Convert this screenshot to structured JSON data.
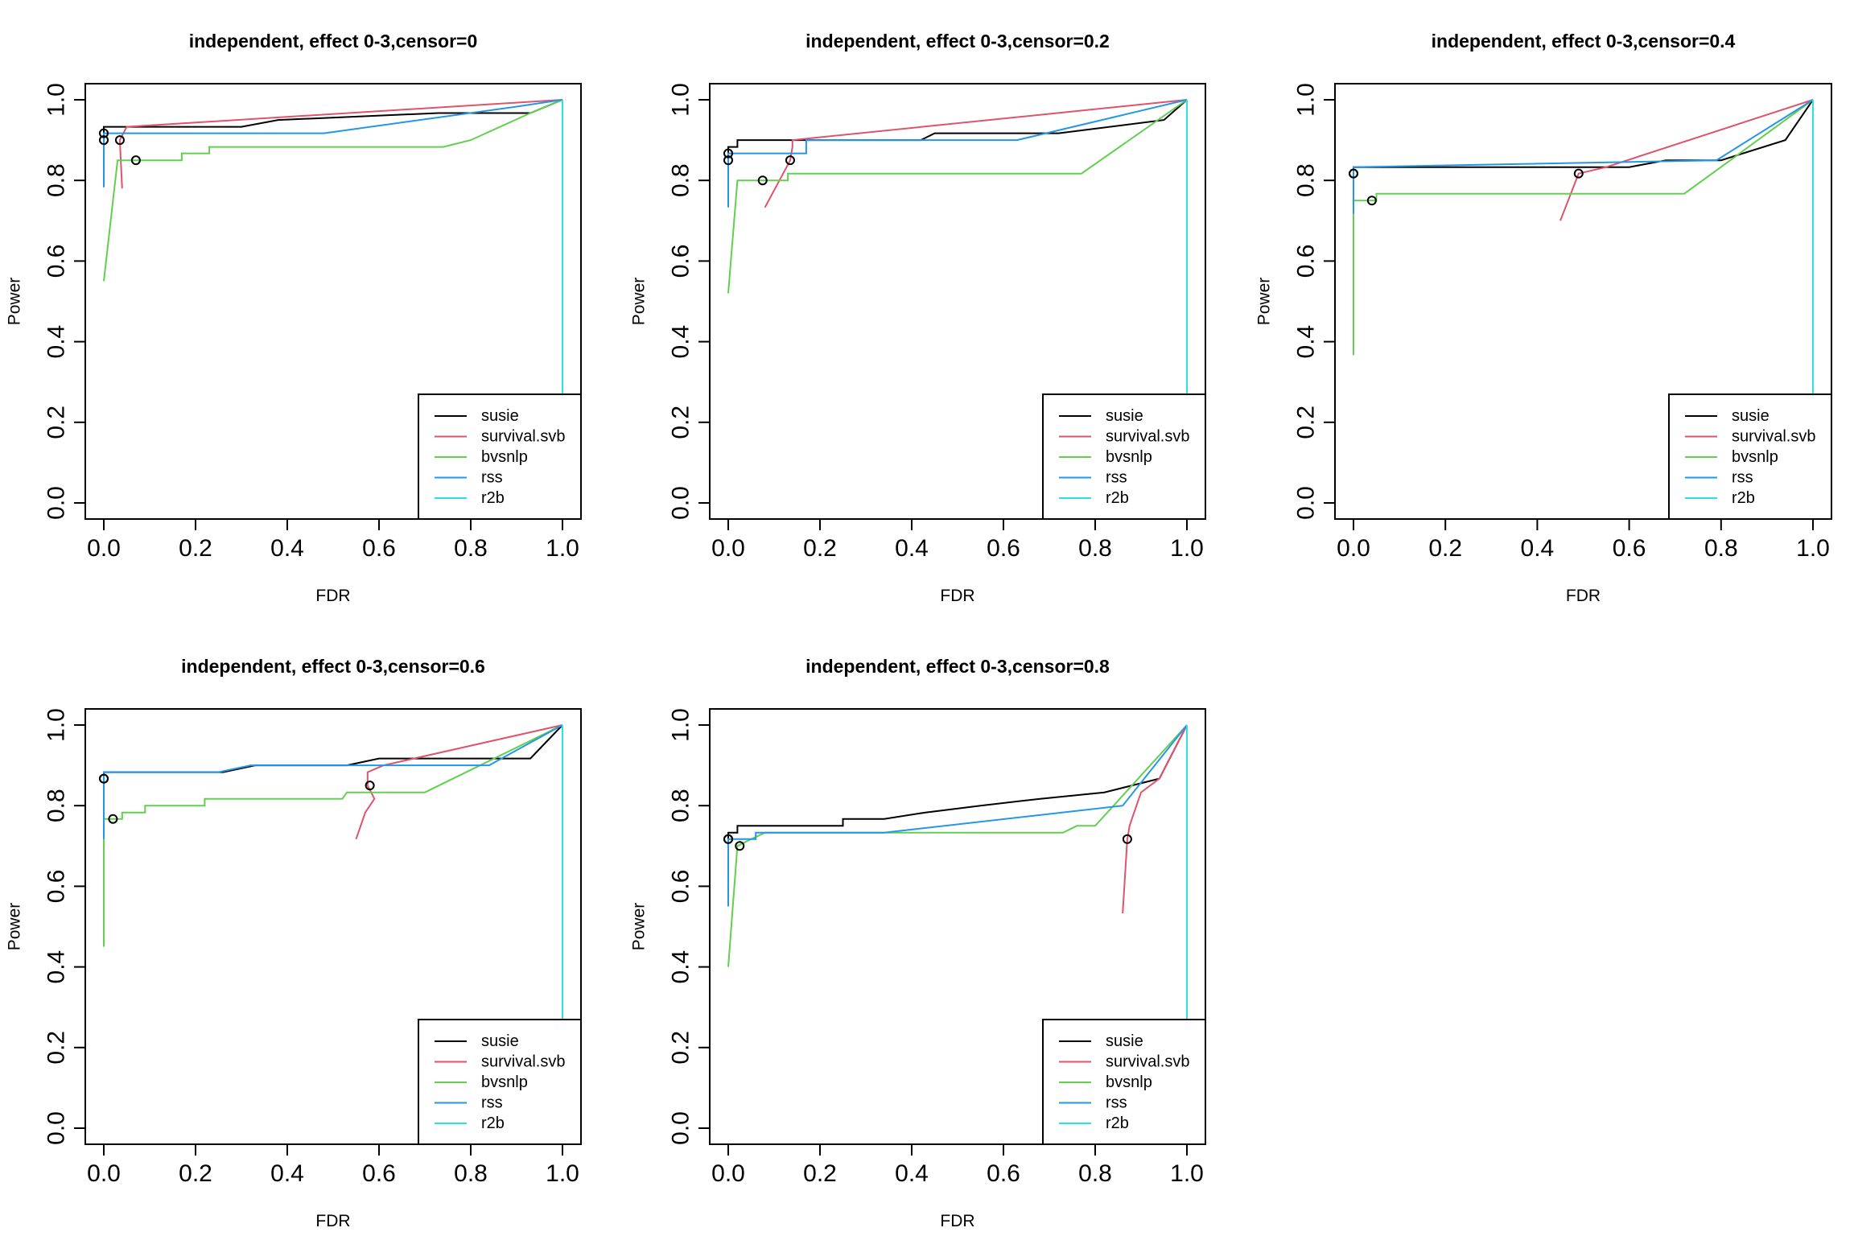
{
  "chart_data": [
    {
      "type": "line",
      "title": "independent, effect 0-3,censor=0",
      "xlabel": "FDR",
      "ylabel": "Power",
      "xlim": [
        0,
        1
      ],
      "ylim": [
        0,
        1
      ],
      "xticks": [
        "0.0",
        "0.2",
        "0.4",
        "0.6",
        "0.8",
        "1.0"
      ],
      "yticks": [
        "0.0",
        "0.2",
        "0.4",
        "0.6",
        "0.8",
        "1.0"
      ],
      "legend": {
        "position": "bottom-right"
      },
      "series": [
        {
          "name": "susie",
          "color": "#000000",
          "x": [
            0,
            0,
            0.26,
            0.3,
            0.38,
            0.73,
            0.93,
            1.0
          ],
          "y": [
            0.9,
            0.933,
            0.933,
            0.933,
            0.95,
            0.967,
            0.967,
            1.0
          ],
          "marker": [
            0,
            0.917
          ]
        },
        {
          "name": "survival.svb",
          "color": "#DF536B",
          "x": [
            0.04,
            0.035,
            0.05,
            1.0
          ],
          "y": [
            0.78,
            0.9,
            0.933,
            1.0
          ],
          "marker": [
            0.035,
            0.9
          ]
        },
        {
          "name": "bvsnlp",
          "color": "#61D04F",
          "x": [
            0,
            0.03,
            0.03,
            0.17,
            0.17,
            0.23,
            0.23,
            0.74,
            0.8,
            0.93,
            1.0
          ],
          "y": [
            0.55,
            0.85,
            0.85,
            0.85,
            0.867,
            0.867,
            0.883,
            0.883,
            0.9,
            0.967,
            1.0
          ],
          "marker": [
            0.07,
            0.85
          ]
        },
        {
          "name": "rss",
          "color": "#2297E6",
          "x": [
            0,
            0,
            0,
            0.48,
            0.9,
            1.0
          ],
          "y": [
            0.783,
            0.9,
            0.917,
            0.917,
            0.983,
            1.0
          ],
          "marker": [
            0,
            0.9
          ]
        },
        {
          "name": "r2b",
          "color": "#28E2E5",
          "x": [
            1.0,
            1.0
          ],
          "y": [
            0.27,
            1.0
          ]
        }
      ]
    },
    {
      "type": "line",
      "title": "independent, effect 0-3,censor=0.2",
      "xlabel": "FDR",
      "ylabel": "Power",
      "xlim": [
        0,
        1
      ],
      "ylim": [
        0,
        1
      ],
      "xticks": [
        "0.0",
        "0.2",
        "0.4",
        "0.6",
        "0.8",
        "1.0"
      ],
      "yticks": [
        "0.0",
        "0.2",
        "0.4",
        "0.6",
        "0.8",
        "1.0"
      ],
      "legend": {
        "position": "bottom-right"
      },
      "series": [
        {
          "name": "susie",
          "color": "#000000",
          "x": [
            0,
            0,
            0.02,
            0.02,
            0.42,
            0.45,
            0.72,
            0.95,
            1.0
          ],
          "y": [
            0.85,
            0.883,
            0.883,
            0.9,
            0.9,
            0.917,
            0.917,
            0.95,
            1.0
          ],
          "marker": [
            0,
            0.867
          ]
        },
        {
          "name": "survival.svb",
          "color": "#DF536B",
          "x": [
            0.08,
            0.135,
            0.14,
            0.14,
            1.0
          ],
          "y": [
            0.733,
            0.85,
            0.883,
            0.9,
            1.0
          ],
          "marker": [
            0.135,
            0.85
          ]
        },
        {
          "name": "bvsnlp",
          "color": "#61D04F",
          "x": [
            0,
            0.02,
            0.02,
            0.13,
            0.13,
            0.77,
            1.0
          ],
          "y": [
            0.52,
            0.8,
            0.8,
            0.8,
            0.817,
            0.817,
            1.0
          ],
          "marker": [
            0.075,
            0.8
          ]
        },
        {
          "name": "rss",
          "color": "#2297E6",
          "x": [
            0,
            0,
            0.17,
            0.17,
            0.63,
            1.0
          ],
          "y": [
            0.733,
            0.867,
            0.867,
            0.9,
            0.9,
            1.0
          ],
          "marker": [
            0,
            0.85
          ]
        },
        {
          "name": "r2b",
          "color": "#28E2E5",
          "x": [
            1.0,
            1.0
          ],
          "y": [
            0.27,
            1.0
          ]
        }
      ]
    },
    {
      "type": "line",
      "title": "independent, effect 0-3,censor=0.4",
      "xlabel": "FDR",
      "ylabel": "Power",
      "xlim": [
        0,
        1
      ],
      "ylim": [
        0,
        1
      ],
      "xticks": [
        "0.0",
        "0.2",
        "0.4",
        "0.6",
        "0.8",
        "1.0"
      ],
      "yticks": [
        "0.0",
        "0.2",
        "0.4",
        "0.6",
        "0.8",
        "1.0"
      ],
      "legend": {
        "position": "bottom-right"
      },
      "series": [
        {
          "name": "susie",
          "color": "#000000",
          "x": [
            0,
            0,
            0.6,
            0.68,
            0.8,
            0.94,
            1.0
          ],
          "y": [
            0.82,
            0.833,
            0.833,
            0.85,
            0.85,
            0.9,
            1.0
          ],
          "marker": [
            0,
            0.817
          ]
        },
        {
          "name": "survival.svb",
          "color": "#DF536B",
          "x": [
            0.45,
            0.49,
            0.55,
            1.0
          ],
          "y": [
            0.7,
            0.817,
            0.833,
            1.0
          ],
          "marker": [
            0.49,
            0.817
          ]
        },
        {
          "name": "bvsnlp",
          "color": "#61D04F",
          "x": [
            0,
            0,
            0.05,
            0.05,
            0.72,
            0.82,
            1.0
          ],
          "y": [
            0.367,
            0.75,
            0.75,
            0.767,
            0.767,
            0.85,
            1.0
          ],
          "marker": [
            0.04,
            0.75
          ]
        },
        {
          "name": "rss",
          "color": "#2297E6",
          "x": [
            0,
            0,
            0.79,
            1.0
          ],
          "y": [
            0.717,
            0.833,
            0.85,
            1.0
          ],
          "marker": [
            0,
            0.817
          ]
        },
        {
          "name": "r2b",
          "color": "#28E2E5",
          "x": [
            1.0,
            1.0
          ],
          "y": [
            0.27,
            1.0
          ]
        }
      ]
    },
    {
      "type": "line",
      "title": "independent, effect 0-3,censor=0.6",
      "xlabel": "FDR",
      "ylabel": "Power",
      "xlim": [
        0,
        1
      ],
      "ylim": [
        0,
        1
      ],
      "xticks": [
        "0.0",
        "0.2",
        "0.4",
        "0.6",
        "0.8",
        "1.0"
      ],
      "yticks": [
        "0.0",
        "0.2",
        "0.4",
        "0.6",
        "0.8",
        "1.0"
      ],
      "legend": {
        "position": "bottom-right"
      },
      "series": [
        {
          "name": "susie",
          "color": "#000000",
          "x": [
            0,
            0,
            0.26,
            0.33,
            0.53,
            0.6,
            0.93,
            1.0
          ],
          "y": [
            0.87,
            0.883,
            0.883,
            0.9,
            0.9,
            0.917,
            0.917,
            1.0
          ],
          "marker": [
            0,
            0.867
          ]
        },
        {
          "name": "survival.svb",
          "color": "#DF536B",
          "x": [
            0.55,
            0.57,
            0.59,
            0.575,
            0.575,
            0.61,
            1.0
          ],
          "y": [
            0.717,
            0.783,
            0.817,
            0.85,
            0.883,
            0.9,
            1.0
          ],
          "marker": [
            0.58,
            0.85
          ]
        },
        {
          "name": "bvsnlp",
          "color": "#61D04F",
          "x": [
            0,
            0,
            0.04,
            0.04,
            0.09,
            0.09,
            0.22,
            0.22,
            0.52,
            0.53,
            0.7,
            1.0
          ],
          "y": [
            0.45,
            0.767,
            0.767,
            0.783,
            0.783,
            0.8,
            0.8,
            0.817,
            0.817,
            0.833,
            0.833,
            1.0
          ],
          "marker": [
            0.02,
            0.767
          ]
        },
        {
          "name": "rss",
          "color": "#2297E6",
          "x": [
            0,
            0,
            0.25,
            0.32,
            0.84,
            1.0
          ],
          "y": [
            0.717,
            0.883,
            0.883,
            0.9,
            0.9,
            1.0
          ],
          "marker": [
            0,
            0.867
          ]
        },
        {
          "name": "r2b",
          "color": "#28E2E5",
          "x": [
            1.0,
            1.0
          ],
          "y": [
            0.27,
            1.0
          ]
        }
      ]
    },
    {
      "type": "line",
      "title": "independent, effect 0-3,censor=0.8",
      "xlabel": "FDR",
      "ylabel": "Power",
      "xlim": [
        0,
        1
      ],
      "ylim": [
        0,
        1
      ],
      "xticks": [
        "0.0",
        "0.2",
        "0.4",
        "0.6",
        "0.8",
        "1.0"
      ],
      "yticks": [
        "0.0",
        "0.2",
        "0.4",
        "0.6",
        "0.8",
        "1.0"
      ],
      "legend": {
        "position": "bottom-right"
      },
      "series": [
        {
          "name": "susie",
          "color": "#000000",
          "x": [
            0,
            0,
            0.02,
            0.02,
            0.25,
            0.25,
            0.34,
            0.43,
            0.55,
            0.68,
            0.82,
            0.94,
            1.0
          ],
          "y": [
            0.717,
            0.733,
            0.733,
            0.75,
            0.75,
            0.767,
            0.767,
            0.783,
            0.8,
            0.817,
            0.833,
            0.867,
            1.0
          ],
          "marker": [
            0,
            0.717
          ]
        },
        {
          "name": "survival.svb",
          "color": "#DF536B",
          "x": [
            0.86,
            0.87,
            0.875,
            0.88,
            0.9,
            0.94,
            1.0
          ],
          "y": [
            0.533,
            0.717,
            0.75,
            0.767,
            0.833,
            0.867,
            1.0
          ],
          "marker": [
            0.87,
            0.717
          ]
        },
        {
          "name": "bvsnlp",
          "color": "#61D04F",
          "x": [
            0,
            0.02,
            0.05,
            0.08,
            0.73,
            0.76,
            0.8,
            1.0
          ],
          "y": [
            0.4,
            0.7,
            0.717,
            0.733,
            0.733,
            0.75,
            0.75,
            1.0
          ],
          "marker": [
            0.025,
            0.7
          ]
        },
        {
          "name": "rss",
          "color": "#2297E6",
          "x": [
            0,
            0,
            0.06,
            0.06,
            0.34,
            0.86,
            1.0
          ],
          "y": [
            0.55,
            0.717,
            0.717,
            0.733,
            0.733,
            0.8,
            1.0
          ],
          "marker": [
            0,
            0.717
          ]
        },
        {
          "name": "r2b",
          "color": "#28E2E5",
          "x": [
            1.0,
            1.0
          ],
          "y": [
            0.27,
            1.0
          ]
        }
      ]
    }
  ]
}
